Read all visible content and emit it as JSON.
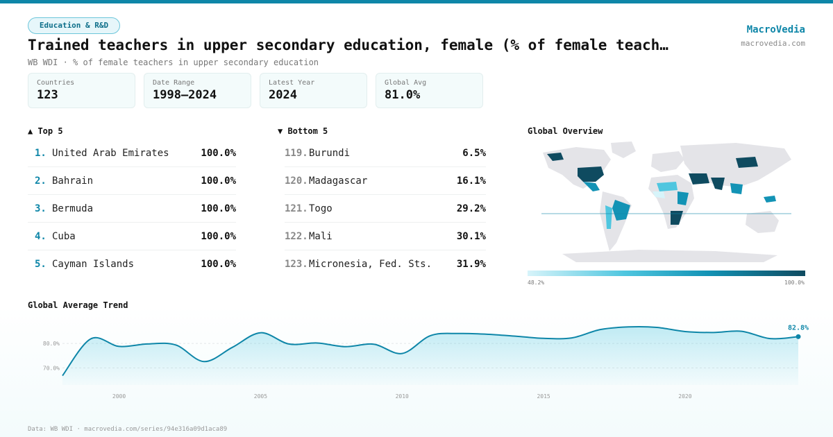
{
  "header": {
    "badge": "Education & R&D",
    "title": "Trained teachers in upper secondary education, female (% of female teach…",
    "subtitle": "WB WDI · % of female teachers in upper secondary education",
    "brand_name": "MacroVedia",
    "brand_url": "macrovedia.com"
  },
  "stats": [
    {
      "label": "Countries",
      "value": "123"
    },
    {
      "label": "Date Range",
      "value": "1998–2024"
    },
    {
      "label": "Latest Year",
      "value": "2024"
    },
    {
      "label": "Global Avg",
      "value": "81.0%"
    }
  ],
  "top5": {
    "title": "▲ Top 5",
    "items": [
      {
        "rank": "1.",
        "name": "United Arab Emirates",
        "value": "100.0%"
      },
      {
        "rank": "2.",
        "name": "Bahrain",
        "value": "100.0%"
      },
      {
        "rank": "3.",
        "name": "Bermuda",
        "value": "100.0%"
      },
      {
        "rank": "4.",
        "name": "Cuba",
        "value": "100.0%"
      },
      {
        "rank": "5.",
        "name": "Cayman Islands",
        "value": "100.0%"
      }
    ]
  },
  "bottom5": {
    "title": "▼ Bottom 5",
    "items": [
      {
        "rank": "119.",
        "name": "Burundi",
        "value": "6.5%"
      },
      {
        "rank": "120.",
        "name": "Madagascar",
        "value": "16.1%"
      },
      {
        "rank": "121.",
        "name": "Togo",
        "value": "29.2%"
      },
      {
        "rank": "122.",
        "name": "Mali",
        "value": "30.1%"
      },
      {
        "rank": "123.",
        "name": "Micronesia, Fed. Sts.",
        "value": "31.9%"
      }
    ]
  },
  "map": {
    "title": "Global Overview",
    "legend_min": "48.2%",
    "legend_max": "100.0%",
    "colors": {
      "land": "#e4e4e8",
      "low": "#d7f4fa",
      "mid": "#1393b5",
      "high": "#0f4b60"
    }
  },
  "trend_title": "Global Average Trend",
  "footer": "Data: WB WDI · macrovedia.com/series/94e316a09d1aca89",
  "chart_data": {
    "type": "area",
    "title": "Global Average Trend",
    "x": [
      1998,
      1999,
      2000,
      2001,
      2002,
      2003,
      2004,
      2005,
      2006,
      2007,
      2008,
      2009,
      2010,
      2011,
      2012,
      2013,
      2014,
      2015,
      2016,
      2017,
      2018,
      2019,
      2020,
      2021,
      2022,
      2023,
      2024
    ],
    "values": [
      66.8,
      81.9,
      78.8,
      79.8,
      79.4,
      72.6,
      78.4,
      84.4,
      79.8,
      80.2,
      78.7,
      79.7,
      75.9,
      83.2,
      84.1,
      83.8,
      83.0,
      82.1,
      82.3,
      85.7,
      86.8,
      86.6,
      84.9,
      84.5,
      85.0,
      82.0,
      82.8
    ],
    "last_label": "82.8%",
    "y_ticks": [
      {
        "value": 70,
        "label": "70.0%"
      },
      {
        "value": 80,
        "label": "80.0%"
      }
    ],
    "x_ticks": [
      {
        "value": 2000,
        "label": "2000"
      },
      {
        "value": 2005,
        "label": "2005"
      },
      {
        "value": 2010,
        "label": "2010"
      },
      {
        "value": 2015,
        "label": "2015"
      },
      {
        "value": 2020,
        "label": "2020"
      }
    ],
    "xlim": [
      1998,
      2024
    ],
    "ylim": [
      63,
      90
    ],
    "grid": true,
    "color": "#0e86a8"
  }
}
